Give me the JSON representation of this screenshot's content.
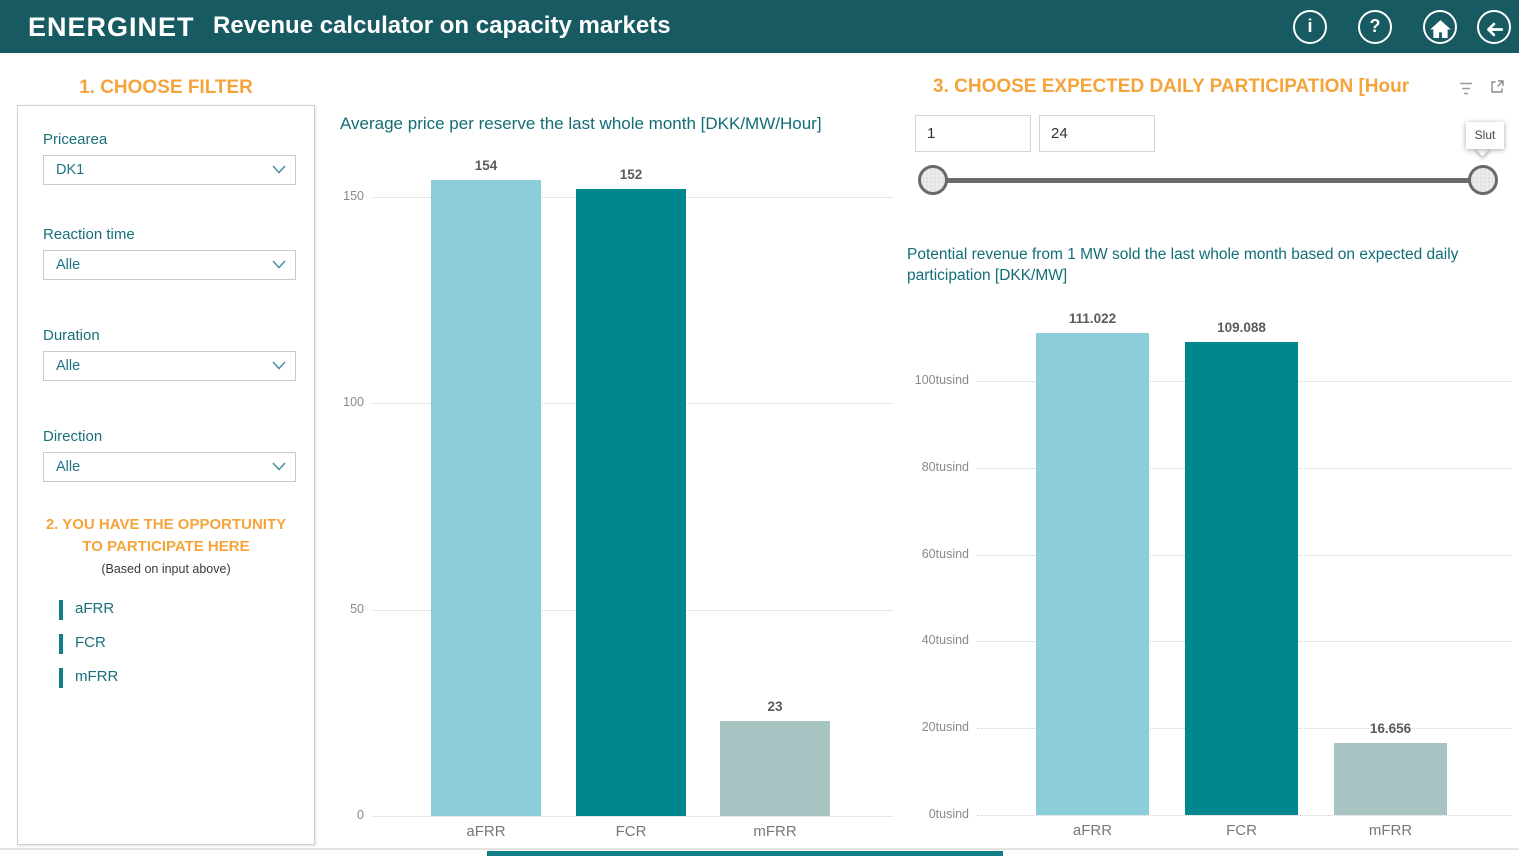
{
  "theme": {
    "header_bg": "#175A61",
    "accent_orange": "#F5A43B",
    "teal_text": "#126D77",
    "bar_colors": [
      "#8BCDD9",
      "#00868D",
      "#A7C4C2"
    ]
  },
  "header": {
    "logo": "ENERGINET",
    "title": "Revenue calculator on capacity markets",
    "icons": [
      "info",
      "help",
      "home",
      "back"
    ]
  },
  "filter_panel": {
    "heading": "1. CHOOSE FILTER",
    "filters": [
      {
        "label": "Pricearea",
        "value": "DK1"
      },
      {
        "label": "Reaction time",
        "value": "Alle"
      },
      {
        "label": "Duration",
        "value": "Alle"
      },
      {
        "label": "Direction",
        "value": "Alle"
      }
    ],
    "opportunity": {
      "heading_lines": [
        "2. YOU HAVE THE OPPORTUNITY",
        "TO PARTICIPATE HERE"
      ],
      "subheading": "(Based on input above)",
      "items": [
        "aFRR",
        "FCR",
        "mFRR"
      ]
    }
  },
  "participation": {
    "heading": "3. CHOOSE EXPECTED DAILY PARTICIPATION [Hour",
    "start_value": "1",
    "end_value": "24",
    "slider_tooltip": "Slut"
  },
  "chart_data": [
    {
      "type": "bar",
      "title": "Average price per reserve the last whole month [DKK/MW/Hour]",
      "categories": [
        "aFRR",
        "FCR",
        "mFRR"
      ],
      "values": [
        154,
        152,
        23
      ],
      "data_labels": [
        "154",
        "152",
        "23"
      ],
      "xlabel": "",
      "ylabel": "DKK/MW/Hour",
      "ylim": [
        0,
        165
      ],
      "yticks": [
        {
          "label": "150",
          "value": 150
        },
        {
          "label": "100",
          "value": 100
        },
        {
          "label": "50",
          "value": 50
        },
        {
          "label": "0",
          "value": 0
        }
      ],
      "grid": "dotted horizontal",
      "legend": false
    },
    {
      "type": "bar",
      "title": "Potential revenue from 1 MW sold the last whole month based on expected daily participation [DKK/MW]",
      "categories": [
        "aFRR",
        "FCR",
        "mFRR"
      ],
      "values": [
        111022,
        109088,
        16656
      ],
      "data_labels": [
        "111.022",
        "109.088",
        "16.656"
      ],
      "xlabel": "",
      "ylabel": "DKK/MW",
      "ylim": [
        0,
        115000
      ],
      "yticks": [
        {
          "label": "100tusind",
          "value": 100000
        },
        {
          "label": "80tusind",
          "value": 80000
        },
        {
          "label": "60tusind",
          "value": 60000
        },
        {
          "label": "40tusind",
          "value": 40000
        },
        {
          "label": "20tusind",
          "value": 20000
        },
        {
          "label": "0tusind",
          "value": 0
        }
      ],
      "grid": "dotted horizontal",
      "legend": false
    }
  ]
}
